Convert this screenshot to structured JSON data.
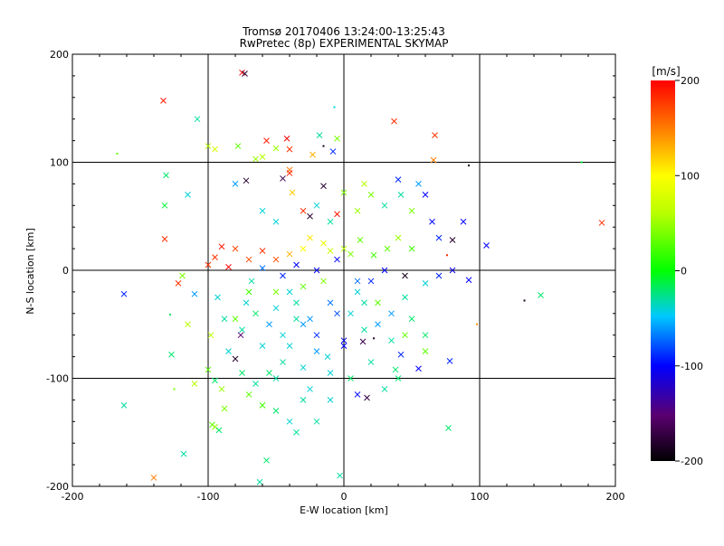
{
  "chart_data": {
    "type": "scatter",
    "title": "Tromsø 20170406 13:24:00-13:25:43",
    "subtitle": "RwPretec (8p) EXPERIMENTAL SKYMAP",
    "xlabel": "E-W location [km]",
    "ylabel": "N-S location [km]",
    "xlim": [
      -200,
      200
    ],
    "ylim": [
      -200,
      200
    ],
    "xticks": [
      "-200",
      "-100",
      "0",
      "100",
      "200"
    ],
    "yticks": [
      "-200",
      "-100",
      "0",
      "100",
      "200"
    ],
    "grid": true,
    "grid_lines_x": [
      -100,
      0,
      100
    ],
    "grid_lines_y": [
      -100,
      0,
      100
    ],
    "colorbar": {
      "label": "[m/s]",
      "min": -200,
      "max": 200,
      "ticks": [
        "200",
        "100",
        "0",
        "-100",
        "-200"
      ],
      "tick_values": [
        200,
        100,
        0,
        -100,
        -200
      ],
      "colormap": "rainbow (black-purple-blue-cyan-green-yellow-red)"
    },
    "marker_types": [
      "x",
      "dot"
    ],
    "points": [
      [
        -140,
        -192,
        150,
        "x"
      ],
      [
        -162,
        -125,
        -30,
        "x"
      ],
      [
        -162,
        -22,
        -90,
        "x"
      ],
      [
        -167,
        108,
        30,
        "dot"
      ],
      [
        -133,
        157,
        190,
        "x"
      ],
      [
        -132,
        60,
        -10,
        "x"
      ],
      [
        -132,
        29,
        180,
        "x"
      ],
      [
        -131,
        88,
        -20,
        "x"
      ],
      [
        -122,
        -12,
        180,
        "x"
      ],
      [
        -119,
        -5,
        40,
        "x"
      ],
      [
        -127,
        -78,
        -20,
        "x"
      ],
      [
        -118,
        -170,
        -30,
        "x"
      ],
      [
        -125,
        -110,
        40,
        "dot"
      ],
      [
        -128,
        -41,
        -20,
        "dot"
      ],
      [
        -108,
        140,
        -30,
        "x"
      ],
      [
        -100,
        115,
        60,
        "x"
      ],
      [
        -95,
        112,
        80,
        "x"
      ],
      [
        -75,
        183,
        200,
        "x"
      ],
      [
        -73,
        182,
        -180,
        "x"
      ],
      [
        -78,
        115,
        30,
        "x"
      ],
      [
        -65,
        103,
        50,
        "x"
      ],
      [
        -60,
        105,
        60,
        "x"
      ],
      [
        -57,
        120,
        190,
        "x"
      ],
      [
        -50,
        113,
        50,
        "x"
      ],
      [
        -42,
        122,
        200,
        "x"
      ],
      [
        -40,
        112,
        180,
        "x"
      ],
      [
        -40,
        93,
        150,
        "x"
      ],
      [
        -23,
        107,
        130,
        "x"
      ],
      [
        -18,
        125,
        -30,
        "x"
      ],
      [
        -15,
        115,
        -190,
        "dot"
      ],
      [
        -8,
        110,
        -90,
        "x"
      ],
      [
        -7,
        151,
        -40,
        "dot"
      ],
      [
        -5,
        122,
        40,
        "x"
      ],
      [
        37,
        138,
        180,
        "x"
      ],
      [
        67,
        125,
        180,
        "x"
      ],
      [
        66,
        102,
        150,
        "x"
      ],
      [
        92,
        97,
        -190,
        "dot"
      ],
      [
        88,
        45,
        -100,
        "x"
      ],
      [
        105,
        23,
        -100,
        "x"
      ],
      [
        92,
        -9,
        -100,
        "x"
      ],
      [
        133,
        -28,
        -190,
        "dot"
      ],
      [
        145,
        -23,
        -20,
        "x"
      ],
      [
        175,
        100,
        -10,
        "dot"
      ],
      [
        190,
        44,
        180,
        "x"
      ],
      [
        98,
        -50,
        140,
        "dot"
      ],
      [
        78,
        -84,
        -90,
        "x"
      ],
      [
        77,
        -146,
        -20,
        "x"
      ],
      [
        55,
        -91,
        -100,
        "x"
      ],
      [
        42,
        -78,
        -90,
        "x"
      ],
      [
        38,
        -92,
        -20,
        "x"
      ],
      [
        17,
        -118,
        -170,
        "x"
      ],
      [
        10,
        -115,
        -100,
        "x"
      ],
      [
        -3,
        -190,
        -30,
        "x"
      ],
      [
        -57,
        -176,
        -20,
        "x"
      ],
      [
        -62,
        -196,
        -30,
        "x"
      ],
      [
        -97,
        -143,
        30,
        "x"
      ],
      [
        -95,
        -145,
        50,
        "x"
      ],
      [
        -100,
        -92,
        30,
        "x"
      ],
      [
        -95,
        -102,
        -20,
        "x"
      ],
      [
        -90,
        -110,
        50,
        "x"
      ],
      [
        -92,
        -148,
        -20,
        "x"
      ],
      [
        -85,
        -75,
        -40,
        "x"
      ],
      [
        -76,
        -60,
        -150,
        "x"
      ],
      [
        -80,
        -82,
        -180,
        "x"
      ],
      [
        -55,
        -95,
        -20,
        "x"
      ],
      [
        -50,
        -100,
        -30,
        "x"
      ],
      [
        -40,
        -140,
        -40,
        "x"
      ],
      [
        -35,
        -150,
        -30,
        "x"
      ],
      [
        -30,
        -120,
        -30,
        "x"
      ],
      [
        -25,
        -110,
        -40,
        "x"
      ],
      [
        -10,
        -120,
        -40,
        "x"
      ],
      [
        -12,
        -80,
        -40,
        "x"
      ],
      [
        0,
        -65,
        -100,
        "x"
      ],
      [
        0,
        -70,
        -100,
        "x"
      ],
      [
        14,
        -66,
        -170,
        "x"
      ],
      [
        22,
        -63,
        -180,
        "dot"
      ],
      [
        -110,
        -22,
        -60,
        "x"
      ],
      [
        -93,
        -25,
        -40,
        "x"
      ],
      [
        -88,
        -45,
        -30,
        "x"
      ],
      [
        -72,
        -30,
        -40,
        "x"
      ],
      [
        -68,
        -10,
        -30,
        "x"
      ],
      [
        -65,
        -40,
        -20,
        "x"
      ],
      [
        -55,
        -50,
        -60,
        "x"
      ],
      [
        -50,
        -35,
        -40,
        "x"
      ],
      [
        -45,
        -60,
        -40,
        "x"
      ],
      [
        -40,
        -20,
        -40,
        "x"
      ],
      [
        -35,
        -30,
        -30,
        "x"
      ],
      [
        -30,
        -50,
        -60,
        "x"
      ],
      [
        -25,
        -45,
        -60,
        "x"
      ],
      [
        -20,
        -60,
        -90,
        "x"
      ],
      [
        -10,
        -30,
        -70,
        "x"
      ],
      [
        -5,
        -40,
        -80,
        "x"
      ],
      [
        5,
        -40,
        -40,
        "x"
      ],
      [
        10,
        -20,
        -40,
        "x"
      ],
      [
        15,
        -30,
        -30,
        "x"
      ],
      [
        25,
        -50,
        -60,
        "x"
      ],
      [
        35,
        -40,
        -60,
        "x"
      ],
      [
        45,
        -25,
        -30,
        "x"
      ],
      [
        50,
        -45,
        -20,
        "x"
      ],
      [
        60,
        -60,
        -20,
        "x"
      ],
      [
        -115,
        70,
        -40,
        "x"
      ],
      [
        -80,
        80,
        -60,
        "x"
      ],
      [
        -72,
        83,
        -180,
        "x"
      ],
      [
        -60,
        55,
        -40,
        "x"
      ],
      [
        -50,
        45,
        -40,
        "x"
      ],
      [
        -45,
        85,
        -170,
        "x"
      ],
      [
        -40,
        90,
        190,
        "x"
      ],
      [
        -38,
        72,
        120,
        "x"
      ],
      [
        -30,
        55,
        180,
        "x"
      ],
      [
        -25,
        50,
        -180,
        "x"
      ],
      [
        -20,
        60,
        -40,
        "x"
      ],
      [
        -15,
        78,
        -180,
        "x"
      ],
      [
        -10,
        45,
        -30,
        "x"
      ],
      [
        -5,
        52,
        190,
        "x"
      ],
      [
        0,
        72,
        40,
        "x"
      ],
      [
        10,
        55,
        50,
        "x"
      ],
      [
        15,
        80,
        60,
        "x"
      ],
      [
        20,
        70,
        40,
        "x"
      ],
      [
        30,
        60,
        -30,
        "x"
      ],
      [
        40,
        84,
        -90,
        "x"
      ],
      [
        42,
        70,
        -30,
        "x"
      ],
      [
        50,
        55,
        40,
        "x"
      ],
      [
        55,
        80,
        -60,
        "x"
      ],
      [
        60,
        70,
        -100,
        "x"
      ],
      [
        65,
        45,
        -100,
        "x"
      ],
      [
        70,
        30,
        -90,
        "x"
      ],
      [
        80,
        28,
        -180,
        "x"
      ],
      [
        76,
        14,
        180,
        "dot"
      ],
      [
        80,
        0,
        -110,
        "x"
      ],
      [
        70,
        -5,
        -90,
        "x"
      ],
      [
        60,
        -12,
        -40,
        "x"
      ],
      [
        45,
        -5,
        -190,
        "x"
      ],
      [
        30,
        0,
        -100,
        "x"
      ],
      [
        20,
        -10,
        -90,
        "x"
      ],
      [
        10,
        -10,
        -70,
        "x"
      ],
      [
        -5,
        10,
        -100,
        "x"
      ],
      [
        -20,
        0,
        -100,
        "x"
      ],
      [
        -35,
        5,
        -100,
        "x"
      ],
      [
        -45,
        -5,
        -90,
        "x"
      ],
      [
        -60,
        2,
        -70,
        "x"
      ],
      [
        -70,
        10,
        170,
        "x"
      ],
      [
        -80,
        20,
        170,
        "x"
      ],
      [
        -90,
        22,
        190,
        "x"
      ],
      [
        -95,
        12,
        180,
        "x"
      ],
      [
        -85,
        3,
        200,
        "x"
      ],
      [
        -100,
        5,
        180,
        "x"
      ],
      [
        -60,
        18,
        180,
        "x"
      ],
      [
        -50,
        10,
        170,
        "x"
      ],
      [
        -40,
        15,
        130,
        "x"
      ],
      [
        -30,
        20,
        100,
        "x"
      ],
      [
        -25,
        30,
        110,
        "x"
      ],
      [
        -15,
        25,
        90,
        "x"
      ],
      [
        -10,
        18,
        70,
        "x"
      ],
      [
        0,
        20,
        60,
        "x"
      ],
      [
        5,
        15,
        40,
        "x"
      ],
      [
        12,
        28,
        30,
        "x"
      ],
      [
        22,
        14,
        20,
        "x"
      ],
      [
        32,
        20,
        30,
        "x"
      ],
      [
        40,
        30,
        50,
        "x"
      ],
      [
        50,
        20,
        20,
        "x"
      ],
      [
        -115,
        -50,
        60,
        "x"
      ],
      [
        -98,
        -60,
        60,
        "x"
      ],
      [
        -110,
        -105,
        60,
        "x"
      ],
      [
        -88,
        -128,
        40,
        "x"
      ],
      [
        -70,
        -115,
        30,
        "x"
      ],
      [
        -60,
        -125,
        20,
        "x"
      ],
      [
        -50,
        -130,
        -20,
        "x"
      ],
      [
        -20,
        -140,
        -30,
        "x"
      ],
      [
        -75,
        -95,
        -20,
        "x"
      ],
      [
        -65,
        -105,
        -30,
        "x"
      ],
      [
        -45,
        -85,
        -30,
        "x"
      ],
      [
        -30,
        -90,
        -40,
        "x"
      ],
      [
        -20,
        -75,
        -60,
        "x"
      ],
      [
        -10,
        -95,
        -40,
        "x"
      ],
      [
        5,
        -100,
        -20,
        "x"
      ],
      [
        20,
        -85,
        -30,
        "x"
      ],
      [
        30,
        -110,
        -30,
        "x"
      ],
      [
        40,
        -100,
        -20,
        "x"
      ],
      [
        60,
        -75,
        30,
        "x"
      ],
      [
        45,
        -60,
        30,
        "x"
      ],
      [
        35,
        -65,
        -30,
        "x"
      ],
      [
        25,
        -30,
        30,
        "x"
      ],
      [
        15,
        -55,
        -30,
        "x"
      ],
      [
        -30,
        -15,
        30,
        "x"
      ],
      [
        -15,
        -10,
        40,
        "x"
      ],
      [
        -50,
        -20,
        40,
        "x"
      ],
      [
        -70,
        -20,
        20,
        "x"
      ],
      [
        -80,
        -45,
        30,
        "x"
      ],
      [
        -75,
        -55,
        -30,
        "x"
      ],
      [
        -60,
        -70,
        -40,
        "x"
      ],
      [
        -40,
        -70,
        -40,
        "x"
      ],
      [
        -35,
        -45,
        -30,
        "x"
      ]
    ]
  }
}
